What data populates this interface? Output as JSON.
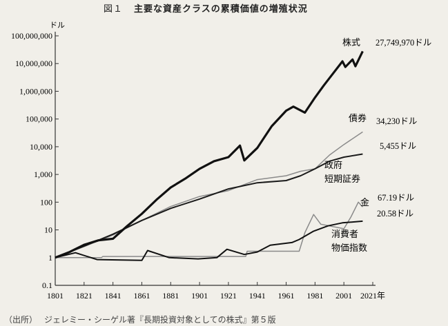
{
  "figure": {
    "number": "図１",
    "title": "主要な資産クラスの累積価値の増殖状況",
    "source_tag": "（出所）",
    "source_text": "ジェレミー・シーゲル著『長期投資対象としての株式』第５版"
  },
  "chart_data": {
    "type": "line",
    "ylabel_unit": "ドル",
    "x_suffix": "年",
    "xlim": [
      1801,
      2021
    ],
    "ylim": [
      0.1,
      100000000
    ],
    "yscale": "log",
    "grid": false,
    "x_ticks": [
      "1801",
      "1821",
      "1841",
      "1861",
      "1881",
      "1901",
      "1921",
      "1941",
      "1961",
      "1981",
      "2001",
      "2021"
    ],
    "y_ticks": [
      {
        "value": 100000000,
        "label": "100,000,000"
      },
      {
        "value": 10000000,
        "label": "10,000,000"
      },
      {
        "value": 1000000,
        "label": "1,000,000"
      },
      {
        "value": 100000,
        "label": "100,000"
      },
      {
        "value": 10000,
        "label": "10,000"
      },
      {
        "value": 1000,
        "label": "1,000"
      },
      {
        "value": 100,
        "label": "100"
      },
      {
        "value": 10,
        "label": "10"
      },
      {
        "value": 1,
        "label": "1"
      },
      {
        "value": 0.1,
        "label": "0.1"
      }
    ],
    "series": [
      {
        "name": "株式",
        "final_value_label": "27,749,970ドル",
        "color": "#111111",
        "width": 3.2,
        "points": [
          [
            1801,
            1
          ],
          [
            1811,
            1.6
          ],
          [
            1821,
            2.9
          ],
          [
            1831,
            4.2
          ],
          [
            1841,
            4.8
          ],
          [
            1851,
            14
          ],
          [
            1861,
            38
          ],
          [
            1871,
            120
          ],
          [
            1881,
            340
          ],
          [
            1891,
            700
          ],
          [
            1901,
            1600
          ],
          [
            1911,
            3000
          ],
          [
            1921,
            4200
          ],
          [
            1929,
            11000
          ],
          [
            1932,
            3200
          ],
          [
            1941,
            9000
          ],
          [
            1951,
            55000
          ],
          [
            1961,
            200000
          ],
          [
            1966,
            280000
          ],
          [
            1974,
            170000
          ],
          [
            1981,
            600000
          ],
          [
            1987,
            1600000
          ],
          [
            1991,
            3000000
          ],
          [
            2000,
            12000000
          ],
          [
            2002,
            7500000
          ],
          [
            2007,
            14000000
          ],
          [
            2009,
            8000000
          ],
          [
            2014,
            27749970
          ]
        ]
      },
      {
        "name": "債券",
        "final_value_label": "34,230ドル",
        "color": "#8a8a8a",
        "width": 1.5,
        "points": [
          [
            1801,
            1
          ],
          [
            1821,
            2.5
          ],
          [
            1841,
            6.5
          ],
          [
            1861,
            22
          ],
          [
            1881,
            70
          ],
          [
            1901,
            160
          ],
          [
            1921,
            260
          ],
          [
            1941,
            650
          ],
          [
            1961,
            900
          ],
          [
            1971,
            1300
          ],
          [
            1981,
            1600
          ],
          [
            1991,
            5000
          ],
          [
            2001,
            12000
          ],
          [
            2014,
            34230
          ]
        ]
      },
      {
        "name": "政府短期証券",
        "final_value_label": "5,455ドル",
        "color": "#1a1a1a",
        "width": 2.0,
        "points": [
          [
            1801,
            1
          ],
          [
            1821,
            2.6
          ],
          [
            1841,
            7
          ],
          [
            1861,
            22
          ],
          [
            1881,
            60
          ],
          [
            1901,
            130
          ],
          [
            1921,
            300
          ],
          [
            1941,
            500
          ],
          [
            1961,
            600
          ],
          [
            1971,
            900
          ],
          [
            1981,
            1600
          ],
          [
            1991,
            3000
          ],
          [
            2001,
            4200
          ],
          [
            2014,
            5455
          ]
        ]
      },
      {
        "name": "金",
        "final_value_label": "67.19ドル",
        "color": "#8a8a8a",
        "width": 1.5,
        "points": [
          [
            1801,
            1
          ],
          [
            1833,
            1
          ],
          [
            1834,
            1.1
          ],
          [
            1933,
            1.1
          ],
          [
            1934,
            1.7
          ],
          [
            1970,
            1.7
          ],
          [
            1974,
            8
          ],
          [
            1980,
            36
          ],
          [
            1985,
            16
          ],
          [
            2001,
            11
          ],
          [
            2006,
            30
          ],
          [
            2011,
            100
          ],
          [
            2014,
            67.19
          ]
        ]
      },
      {
        "name": "消費者物価指数",
        "final_value_label": "20.58ドル",
        "color": "#111111",
        "width": 2.0,
        "points": [
          [
            1801,
            1
          ],
          [
            1815,
            1.5
          ],
          [
            1830,
            0.85
          ],
          [
            1861,
            0.8
          ],
          [
            1865,
            1.8
          ],
          [
            1880,
            1.0
          ],
          [
            1900,
            0.9
          ],
          [
            1913,
            1.0
          ],
          [
            1920,
            2.0
          ],
          [
            1932,
            1.3
          ],
          [
            1941,
            1.6
          ],
          [
            1950,
            2.8
          ],
          [
            1965,
            3.5
          ],
          [
            1970,
            4.5
          ],
          [
            1980,
            9
          ],
          [
            1990,
            14
          ],
          [
            2000,
            18
          ],
          [
            2014,
            20.58
          ]
        ]
      }
    ]
  }
}
